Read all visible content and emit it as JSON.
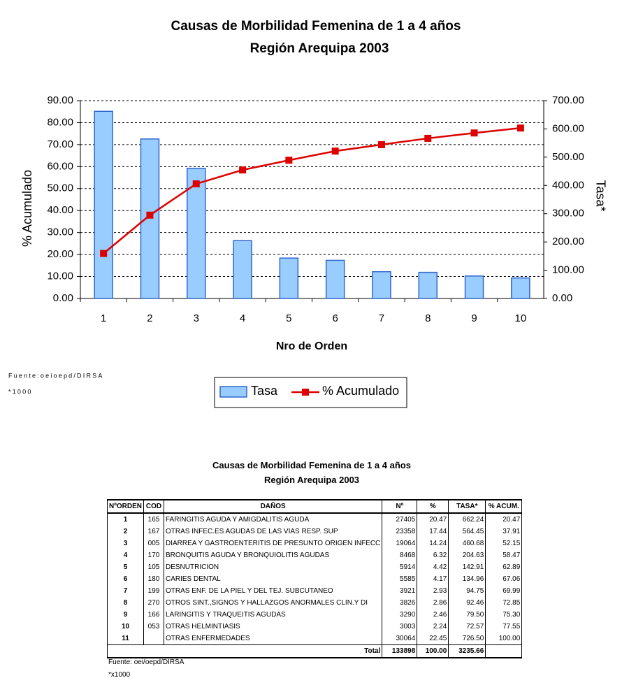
{
  "chart_data": {
    "type": "combo",
    "title": "Causas de Morbilidad Femenina de 1 a 4 años",
    "subtitle": "Región Arequipa 2003",
    "x_label": "Nro de Orden",
    "y_label": "% Acumulado",
    "y2_label": "Tasa*",
    "categories": [
      "1",
      "2",
      "3",
      "4",
      "5",
      "6",
      "7",
      "8",
      "9",
      "10"
    ],
    "series": [
      {
        "name": "Tasa",
        "type": "bar",
        "axis": "y2",
        "color": "#99ccff",
        "values": [
          662.24,
          564.45,
          460.68,
          204.63,
          142.91,
          134.96,
          94.75,
          92.46,
          79.5,
          72.57
        ]
      },
      {
        "name": "% Acumulado",
        "type": "line",
        "color": "#dd0000",
        "values": [
          20.47,
          37.91,
          52.15,
          58.47,
          62.89,
          67.06,
          69.99,
          72.85,
          75.3,
          77.55
        ]
      }
    ],
    "ylim": [
      0,
      90
    ],
    "yticks": [
      {
        "value": 0,
        "label": "0.00"
      },
      {
        "value": 10,
        "label": "10.00"
      },
      {
        "value": 20,
        "label": "20.00"
      },
      {
        "value": 30,
        "label": "30.00"
      },
      {
        "value": 40,
        "label": "40.00"
      },
      {
        "value": 50,
        "label": "50.00"
      },
      {
        "value": 60,
        "label": "60.00"
      },
      {
        "value": 70,
        "label": "70.00"
      },
      {
        "value": 80,
        "label": "80.00"
      },
      {
        "value": 90,
        "label": "90.00"
      }
    ],
    "y2lim": [
      0,
      700
    ],
    "y2ticks": [
      {
        "value": 0,
        "label": "0.00"
      },
      {
        "value": 100,
        "label": "100.00"
      },
      {
        "value": 200,
        "label": "200.00"
      },
      {
        "value": 300,
        "label": "300.00"
      },
      {
        "value": 400,
        "label": "400.00"
      },
      {
        "value": 500,
        "label": "500.00"
      },
      {
        "value": 600,
        "label": "600.00"
      },
      {
        "value": 700,
        "label": "700.00"
      }
    ],
    "grid": true,
    "legend": "bottom",
    "source": "Fuente:oeioepd/DIRSA",
    "note": "*1000"
  },
  "table": {
    "title": "Causas de Morbilidad Femenina de 1 a 4 años",
    "subtitle": "Región Arequipa 2003",
    "columns": [
      "NºORDEN",
      "COD",
      "DAÑOS",
      "Nº",
      "%",
      "TASA*",
      "% ACUM."
    ],
    "rows": [
      [
        "1",
        "165",
        "FARINGITIS AGUDA Y AMIGDALITIS AGUDA",
        "27405",
        "20.47",
        "662.24",
        "20.47"
      ],
      [
        "2",
        "167",
        "OTRAS INFEC.ES AGUDAS DE LAS VIAS RESP. SUP",
        "23358",
        "17.44",
        "564.45",
        "37.91"
      ],
      [
        "3",
        "005",
        "DIARREA Y GASTROENTERITIS DE PRESUNTO ORIGEN INFECC",
        "19064",
        "14.24",
        "460.68",
        "52.15"
      ],
      [
        "4",
        "170",
        "BRONQUITIS AGUDA Y BRONQUIOLITIS AGUDAS",
        "8468",
        "6.32",
        "204.63",
        "58.47"
      ],
      [
        "5",
        "105",
        "DESNUTRICION",
        "5914",
        "4.42",
        "142.91",
        "62.89"
      ],
      [
        "6",
        "180",
        "CARIES DENTAL",
        "5585",
        "4.17",
        "134.96",
        "67.06"
      ],
      [
        "7",
        "199",
        "OTRAS ENF. DE LA PIEL Y DEL TEJ. SUBCUTANEO",
        "3921",
        "2.93",
        "94.75",
        "69.99"
      ],
      [
        "8",
        "270",
        "OTROS SINT.,SIGNOS Y HALLAZGOS ANORMALES CLIN.Y DI",
        "3826",
        "2.86",
        "92.46",
        "72.85"
      ],
      [
        "9",
        "166",
        "LARINGITIS Y TRAQUEITIS AGUDAS",
        "3290",
        "2.46",
        "79.50",
        "75.30"
      ],
      [
        "10",
        "053",
        "OTRAS HELMINTIASIS",
        "3003",
        "2.24",
        "72.57",
        "77.55"
      ],
      [
        "11",
        null,
        "OTRAS ENFERMEDADES",
        "30064",
        "22.45",
        "726.50",
        "100.00"
      ]
    ],
    "total": {
      "label": "Total",
      "values": [
        "133898",
        "100.00",
        "3235.66"
      ]
    },
    "source": "Fuente: oei/oepd/DIRSA",
    "note": "*x1000"
  }
}
